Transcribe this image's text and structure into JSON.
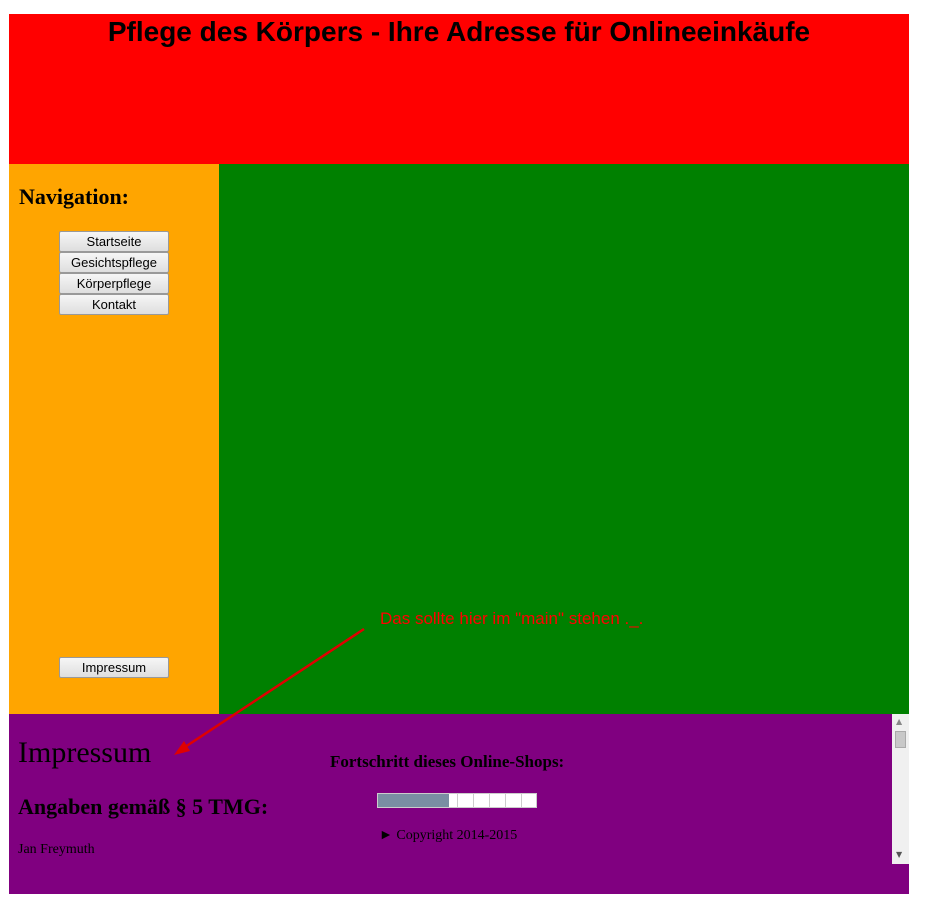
{
  "header": {
    "title": "Pflege des Körpers - Ihre Adresse für Onlineeinkäufe"
  },
  "sidebar": {
    "heading": "Navigation:",
    "buttons": [
      "Startseite",
      "Gesichtspflege",
      "Körperpflege",
      "Kontakt"
    ],
    "footer_button": "Impressum"
  },
  "annotation": "Das sollte hier im \"main\" stehen ._.",
  "footer": {
    "heading": "Impressum",
    "subheading": "Angaben gemäß § 5 TMG:",
    "lines": [
      "Jan Freymuth"
    ],
    "progress_title": "Fortschritt dieses Online-Shops:",
    "progress": {
      "value": 45,
      "max": 100
    },
    "copyright": "Copyright 2014-2015"
  }
}
